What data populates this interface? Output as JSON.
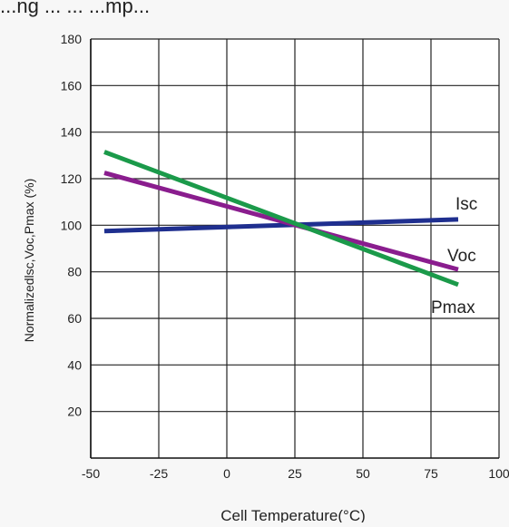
{
  "page": {
    "title_fragment": "...ng ... ... ...mp..."
  },
  "chart_data": {
    "type": "line",
    "title": "",
    "xlabel": "Cell Temperature(°C)",
    "ylabel": "Normalizedlsc,Voc,Pmax (%)",
    "xlim": [
      -50,
      100
    ],
    "ylim": [
      0,
      180
    ],
    "xticks": [
      -50,
      -25,
      0,
      25,
      50,
      75,
      100
    ],
    "yticks": [
      20,
      40,
      60,
      80,
      100,
      120,
      140,
      160,
      180
    ],
    "xticklabels": [
      "-50",
      "-25",
      "0",
      "25",
      "50",
      "75",
      "100"
    ],
    "yticklabels": [
      "20",
      "40",
      "60",
      "80",
      "100",
      "120",
      "140",
      "160",
      "180"
    ],
    "grid": true,
    "series": [
      {
        "name": "Isc",
        "color": "#1f2f8f",
        "points": [
          [
            -45,
            97.5
          ],
          [
            85,
            102.5
          ]
        ]
      },
      {
        "name": "Voc",
        "color": "#8a1d8e",
        "points": [
          [
            -45,
            122.5
          ],
          [
            85,
            81
          ]
        ]
      },
      {
        "name": "Pmax",
        "color": "#1b9a4a",
        "points": [
          [
            -45,
            131.5
          ],
          [
            85,
            74.5
          ]
        ]
      }
    ],
    "annotations": [
      {
        "text": "Isc"
      },
      {
        "text": "Voc"
      },
      {
        "text": "Pmax"
      }
    ]
  }
}
